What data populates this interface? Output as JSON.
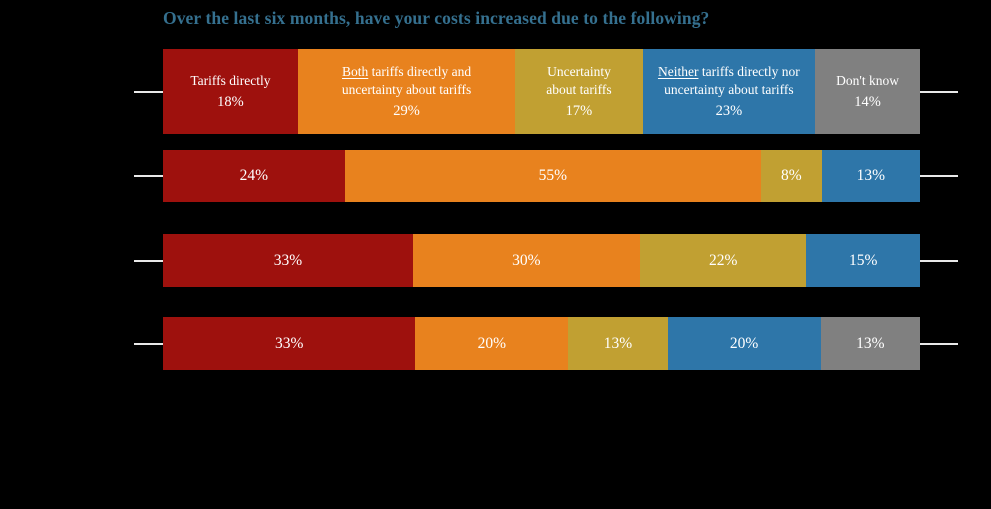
{
  "page": {
    "background": "#000000"
  },
  "title": {
    "text": "Over the last six months, have your costs increased due to the following?",
    "color": "#35708F"
  },
  "axis": {
    "tick_color": "#E9E9E9"
  },
  "chart_data": {
    "type": "bar",
    "orientation": "horizontal",
    "stacked": true,
    "grid": false,
    "legend": "labels shown inside first bar segments",
    "title": "Over the last six months, have your costs increased due to the following?",
    "value_suffix": "%",
    "series": [
      {
        "key": "tariffs-directly",
        "name": "Tariffs directly",
        "color": "#9E110D",
        "label_lines": [
          "Tariffs directly"
        ],
        "underline_first_word": false
      },
      {
        "key": "both-tariffs-and-uncertainty",
        "name": "Both tariffs directly and uncertainty about tariffs",
        "color": "#E8821E",
        "label_lines": [
          "Both tariffs directly and",
          "uncertainty about tariffs"
        ],
        "underline_first_word": true
      },
      {
        "key": "uncertainty-about-tariffs",
        "name": "Uncertainty about tariffs",
        "color": "#C1A032",
        "label_lines": [
          "Uncertainty",
          "about tariffs"
        ],
        "underline_first_word": false
      },
      {
        "key": "neither-tariffs-nor-uncertainty",
        "name": "Neither tariffs directly nor uncertainty about tariffs",
        "color": "#2E76A9",
        "label_lines": [
          "Neither tariffs directly nor",
          "uncertainty about tariffs"
        ],
        "underline_first_word": true
      },
      {
        "key": "dont-know",
        "name": "Don't know",
        "color": "#808080",
        "label_lines": [
          "Don't know"
        ],
        "underline_first_word": false
      }
    ],
    "rows": [
      {
        "segments": [
          18,
          29,
          17,
          23,
          14
        ],
        "show_category_labels": true
      },
      {
        "segments": [
          24,
          55,
          8,
          13,
          0
        ],
        "show_category_labels": false
      },
      {
        "segments": [
          33,
          30,
          22,
          15,
          0
        ],
        "show_category_labels": false
      },
      {
        "segments": [
          33,
          20,
          13,
          20,
          13
        ],
        "show_category_labels": false
      }
    ]
  }
}
